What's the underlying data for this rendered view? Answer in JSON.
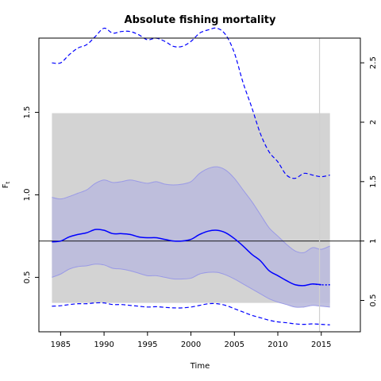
{
  "chart_data": {
    "type": "line",
    "title": "Absolute fishing mortality",
    "xlabel": "Time",
    "ylabel": "F",
    "ylabel_subscript": "t",
    "xlim": [
      1982.5,
      2019.5
    ],
    "ylim": [
      0.17,
      1.95
    ],
    "right_axis_ylim": [
      0.236,
      2.708
    ],
    "x_ticks": [
      1985,
      1990,
      1995,
      2000,
      2005,
      2010,
      2015
    ],
    "y_ticks": [
      0.5,
      1.0,
      1.5
    ],
    "y_tick_labels": [
      "0.5",
      "1.0",
      "1.5"
    ],
    "right_ticks": [
      0.5,
      1,
      1.5,
      2,
      2.5
    ],
    "right_tick_labels": [
      "0.5",
      "1",
      "1.5",
      "2",
      "2.5"
    ],
    "reference_line": 0.72,
    "reference_band": {
      "x": [
        1984,
        2016
      ],
      "y": [
        0.345,
        1.495
      ],
      "color": "#d3d3d3"
    },
    "vertical_line_x": 2014.8,
    "colors": {
      "estimate": "#0000ff",
      "ci_fill": "#bbbbdd",
      "ci_edge": "#9a9ae6",
      "band": "#d3d3d3",
      "ref_line": "#000000",
      "vline": "#d0d0d0"
    },
    "x": [
      1984,
      1985,
      1986,
      1987,
      1988,
      1989,
      1990,
      1991,
      1992,
      1993,
      1994,
      1995,
      1996,
      1997,
      1998,
      1999,
      2000,
      2001,
      2002,
      2003,
      2004,
      2005,
      2006,
      2007,
      2008,
      2009,
      2010,
      2011,
      2012,
      2013,
      2014,
      2015,
      2016
    ],
    "series": [
      {
        "role": "estimate",
        "style": "solid",
        "values": [
          0.715,
          0.72,
          0.745,
          0.76,
          0.77,
          0.79,
          0.785,
          0.765,
          0.765,
          0.76,
          0.745,
          0.74,
          0.74,
          0.73,
          0.72,
          0.72,
          0.73,
          0.76,
          0.78,
          0.785,
          0.77,
          0.735,
          0.69,
          0.64,
          0.6,
          0.54,
          0.51,
          0.48,
          0.455,
          0.45,
          0.46,
          0.455,
          0.455
        ]
      },
      {
        "role": "ci_upper",
        "style": "solid",
        "values": [
          0.985,
          0.975,
          0.99,
          1.01,
          1.03,
          1.07,
          1.09,
          1.075,
          1.08,
          1.09,
          1.08,
          1.07,
          1.08,
          1.065,
          1.06,
          1.065,
          1.08,
          1.13,
          1.16,
          1.17,
          1.15,
          1.1,
          1.03,
          0.96,
          0.88,
          0.8,
          0.75,
          0.7,
          0.66,
          0.65,
          0.68,
          0.67,
          0.69
        ]
      },
      {
        "role": "ci_lower",
        "style": "solid",
        "values": [
          0.5,
          0.52,
          0.55,
          0.565,
          0.57,
          0.58,
          0.575,
          0.555,
          0.55,
          0.54,
          0.525,
          0.51,
          0.51,
          0.5,
          0.49,
          0.49,
          0.495,
          0.52,
          0.53,
          0.53,
          0.515,
          0.49,
          0.46,
          0.43,
          0.4,
          0.37,
          0.35,
          0.335,
          0.32,
          0.32,
          0.33,
          0.325,
          0.32
        ]
      },
      {
        "role": "outer_upper",
        "style": "dashed",
        "values": [
          1.8,
          1.8,
          1.85,
          1.89,
          1.91,
          1.96,
          2.01,
          1.98,
          1.99,
          1.99,
          1.97,
          1.94,
          1.95,
          1.93,
          1.9,
          1.9,
          1.93,
          1.98,
          2.0,
          2.01,
          1.97,
          1.86,
          1.68,
          1.53,
          1.37,
          1.26,
          1.2,
          1.12,
          1.1,
          1.13,
          1.12,
          1.11,
          1.12
        ]
      },
      {
        "role": "outer_lower",
        "style": "dashed",
        "values": [
          0.325,
          0.328,
          0.335,
          0.34,
          0.34,
          0.345,
          0.345,
          0.335,
          0.335,
          0.33,
          0.325,
          0.32,
          0.322,
          0.318,
          0.315,
          0.315,
          0.32,
          0.33,
          0.34,
          0.34,
          0.33,
          0.31,
          0.29,
          0.27,
          0.255,
          0.24,
          0.23,
          0.225,
          0.218,
          0.215,
          0.218,
          0.215,
          0.212
        ]
      }
    ]
  }
}
